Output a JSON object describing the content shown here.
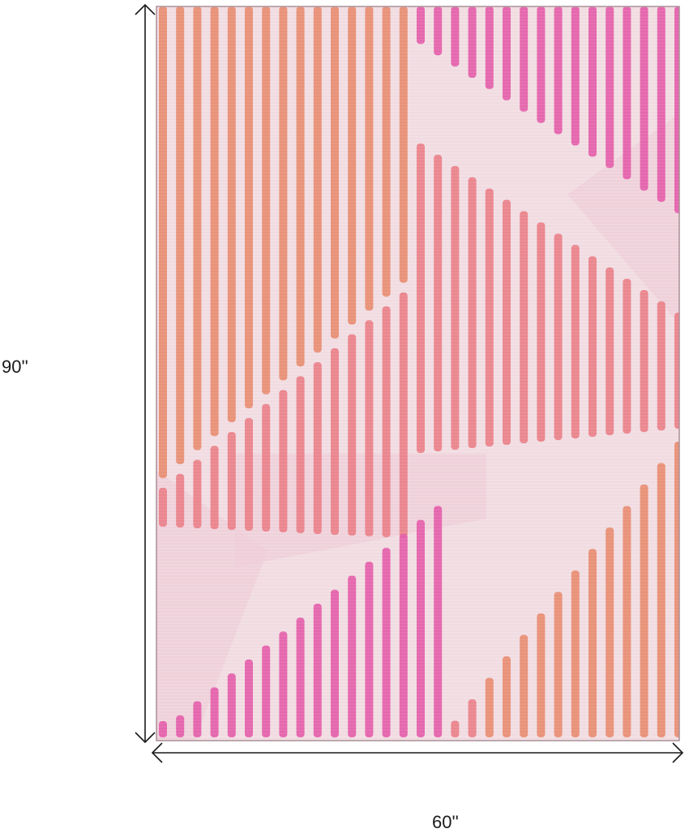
{
  "dimensions": {
    "height_label": "90''",
    "width_label": "60''"
  },
  "rug": {
    "background_color": "#f2dde3",
    "colors": {
      "pink": "#e45aa8",
      "orange": "#e88a6e",
      "coral": "#ea7d86",
      "blush": "#f0cdd9",
      "edge": "#a98f96"
    }
  }
}
